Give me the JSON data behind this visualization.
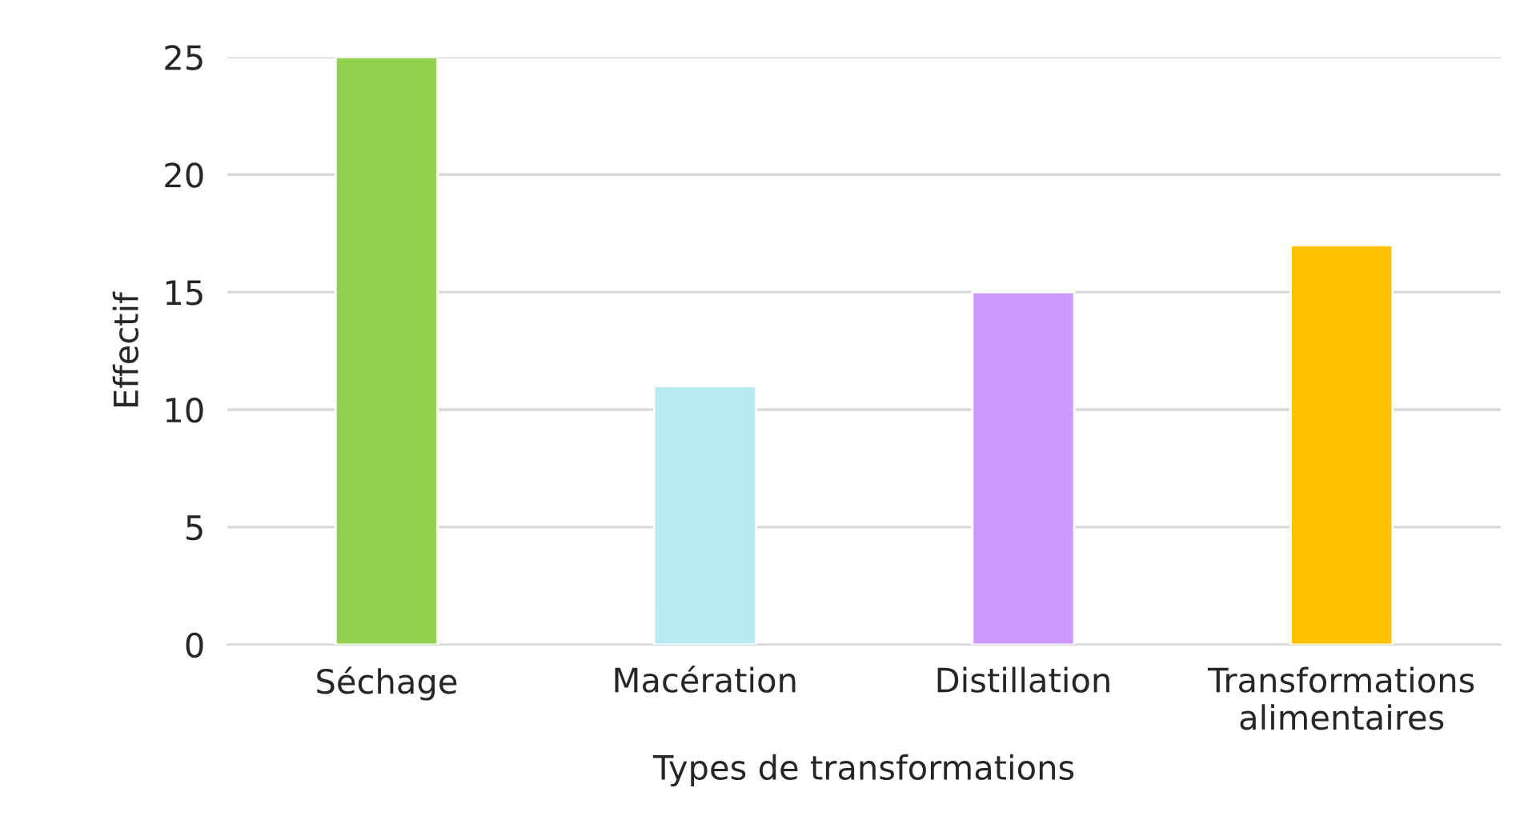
{
  "chart_data": {
    "type": "bar",
    "xlabel": "Types de transformations",
    "ylabel": "Effectif",
    "categories": [
      "Séchage",
      "Macération",
      "Distillation",
      "Transformations\nalimentaires"
    ],
    "values": [
      25,
      11,
      15,
      17
    ],
    "colors": [
      "#92d050",
      "#b7eaf3",
      "#cc99ff",
      "#ffc000"
    ],
    "ylim": [
      0,
      25
    ],
    "yticks": [
      0,
      5,
      10,
      15,
      20,
      25
    ],
    "grid": "y",
    "legend": false
  }
}
